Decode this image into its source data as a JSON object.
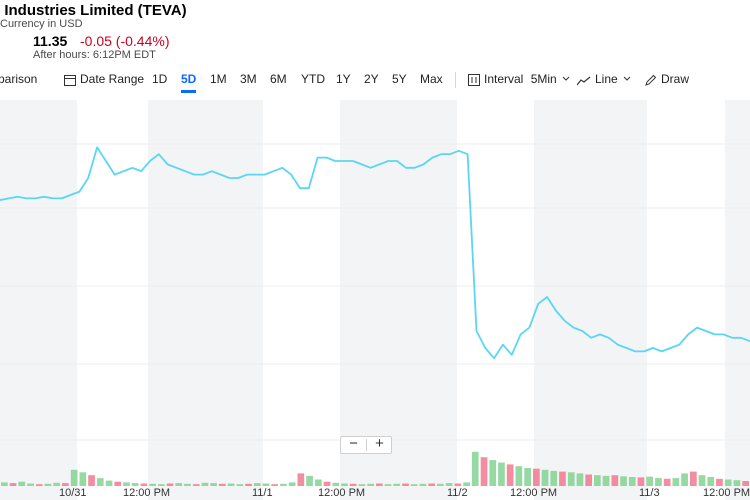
{
  "header": {
    "title": "l Industries Limited (TEVA)",
    "currency": "Currency in USD",
    "paren_glyph": ")",
    "after_hours": {
      "price": "11.35",
      "change": "-0.05 (-0.44%)",
      "time": "After hours: 6:12PM EDT"
    }
  },
  "toolbar": {
    "comparison": "parison",
    "date_range": "Date Range",
    "ranges": [
      "1D",
      "5D",
      "1M",
      "3M",
      "6M",
      "YTD",
      "1Y",
      "2Y",
      "5Y",
      "Max"
    ],
    "active_range": "5D",
    "interval_label": "Interval",
    "interval_value": "5Min",
    "line_label": "Line",
    "draw_label": "Draw"
  },
  "zoom": {
    "minus": "−",
    "plus": "+"
  },
  "chart_data": {
    "type": "line",
    "x_tick_labels": [
      "10/31",
      "12:00 PM",
      "11/1",
      "12:00 PM",
      "11/2",
      "12:00 PM",
      "11/3",
      "12:00 PM"
    ],
    "line_color": "#5ad6f3",
    "up_volume_color": "#7bd08c",
    "down_volume_color": "#f2708a",
    "grid": true,
    "series": [
      {
        "values": [
          [
            0,
            0.735
          ],
          [
            1,
            0.74
          ],
          [
            2,
            0.745
          ],
          [
            3,
            0.74
          ],
          [
            4,
            0.74
          ],
          [
            5,
            0.745
          ],
          [
            6,
            0.74
          ],
          [
            7,
            0.74
          ],
          [
            8,
            0.75
          ],
          [
            9,
            0.76
          ],
          [
            10,
            0.8
          ],
          [
            11,
            0.89
          ],
          [
            12,
            0.85
          ],
          [
            13,
            0.81
          ],
          [
            14,
            0.82
          ],
          [
            15,
            0.83
          ],
          [
            16,
            0.82
          ],
          [
            17,
            0.85
          ],
          [
            18,
            0.87
          ],
          [
            19,
            0.84
          ],
          [
            20,
            0.83
          ],
          [
            21,
            0.82
          ],
          [
            22,
            0.81
          ],
          [
            23,
            0.81
          ],
          [
            24,
            0.82
          ],
          [
            25,
            0.81
          ],
          [
            26,
            0.8
          ],
          [
            27,
            0.8
          ],
          [
            28,
            0.81
          ],
          [
            29,
            0.81
          ],
          [
            30,
            0.81
          ],
          [
            31,
            0.82
          ],
          [
            32,
            0.83
          ],
          [
            33,
            0.81
          ],
          [
            34,
            0.77
          ],
          [
            35,
            0.77
          ],
          [
            36,
            0.86
          ],
          [
            37,
            0.86
          ],
          [
            38,
            0.85
          ],
          [
            39,
            0.85
          ],
          [
            40,
            0.85
          ],
          [
            41,
            0.84
          ],
          [
            42,
            0.83
          ],
          [
            43,
            0.84
          ],
          [
            44,
            0.85
          ],
          [
            45,
            0.85
          ],
          [
            46,
            0.83
          ],
          [
            47,
            0.83
          ],
          [
            48,
            0.84
          ],
          [
            49,
            0.86
          ],
          [
            50,
            0.87
          ],
          [
            51,
            0.87
          ],
          [
            52,
            0.88
          ],
          [
            53,
            0.87
          ],
          [
            54,
            0.35
          ],
          [
            55,
            0.3
          ],
          [
            56,
            0.27
          ],
          [
            57,
            0.31
          ],
          [
            58,
            0.28
          ],
          [
            59,
            0.34
          ],
          [
            60,
            0.36
          ],
          [
            61,
            0.43
          ],
          [
            62,
            0.45
          ],
          [
            63,
            0.41
          ],
          [
            64,
            0.38
          ],
          [
            65,
            0.36
          ],
          [
            66,
            0.35
          ],
          [
            67,
            0.33
          ],
          [
            68,
            0.34
          ],
          [
            69,
            0.33
          ],
          [
            70,
            0.31
          ],
          [
            71,
            0.3
          ],
          [
            72,
            0.29
          ],
          [
            73,
            0.29
          ],
          [
            74,
            0.3
          ],
          [
            75,
            0.29
          ],
          [
            76,
            0.3
          ],
          [
            77,
            0.31
          ],
          [
            78,
            0.34
          ],
          [
            79,
            0.36
          ],
          [
            80,
            0.35
          ],
          [
            81,
            0.34
          ],
          [
            82,
            0.34
          ],
          [
            83,
            0.33
          ],
          [
            84,
            0.33
          ],
          [
            85,
            0.32
          ]
        ]
      }
    ],
    "volume": [
      0.1,
      0.08,
      0.12,
      0.07,
      0.05,
      0.06,
      0.09,
      0.08,
      0.45,
      0.38,
      0.3,
      0.22,
      0.15,
      0.12,
      0.1,
      0.08,
      0.07,
      0.06,
      0.05,
      0.07,
      0.08,
      0.06,
      0.05,
      0.09,
      0.08,
      0.06,
      0.07,
      0.05,
      0.06,
      0.08,
      0.07,
      0.05,
      0.06,
      0.1,
      0.35,
      0.28,
      0.18,
      0.12,
      0.09,
      0.07,
      0.06,
      0.05,
      0.06,
      0.07,
      0.05,
      0.06,
      0.07,
      0.05,
      0.06,
      0.07,
      0.06,
      0.08,
      0.07,
      0.1,
      0.95,
      0.8,
      0.72,
      0.65,
      0.6,
      0.55,
      0.5,
      0.48,
      0.45,
      0.42,
      0.4,
      0.38,
      0.35,
      0.32,
      0.3,
      0.28,
      0.3,
      0.27,
      0.25,
      0.24,
      0.26,
      0.22,
      0.2,
      0.22,
      0.35,
      0.4,
      0.3,
      0.25,
      0.2,
      0.18,
      0.16,
      0.14
    ]
  }
}
